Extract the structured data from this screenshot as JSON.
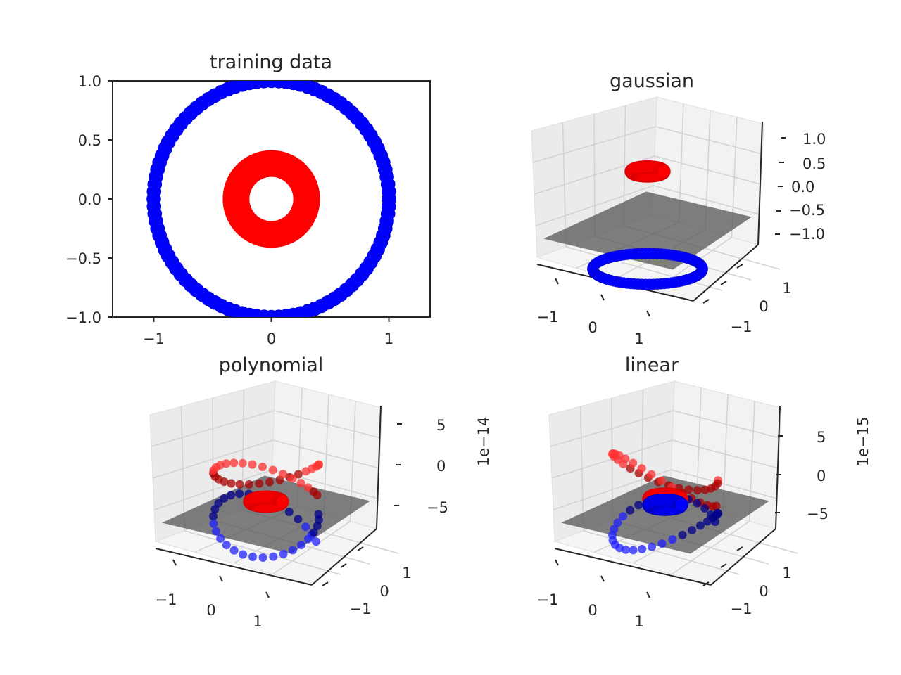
{
  "chart_data": [
    {
      "type": "scatter",
      "title": "training data",
      "xlim": [
        -1.35,
        1.35
      ],
      "ylim": [
        -1.0,
        1.0
      ],
      "xticks": [
        -1,
        0,
        1
      ],
      "xtick_labels": [
        "−1",
        "0",
        "1"
      ],
      "yticks": [
        -1.0,
        -0.5,
        0.0,
        0.5,
        1.0
      ],
      "ytick_labels": [
        "−1.0",
        "−0.5",
        "0.0",
        "0.5",
        "1.0"
      ],
      "grid": false,
      "series": [
        {
          "color": "#0000ff",
          "shape": "circle",
          "radius": 1.0,
          "points": 100
        },
        {
          "color": "#ff0000",
          "shape": "ring",
          "radius": 0.3,
          "points": 100
        }
      ]
    },
    {
      "type": "scatter3d",
      "title": "gaussian",
      "xticks": [
        -1,
        0,
        1
      ],
      "xtick_labels": [
        "−1",
        "0",
        "1"
      ],
      "yticks": [
        -1,
        0,
        1
      ],
      "ytick_labels": [
        "−1",
        "0",
        "1"
      ],
      "zticks": [
        -1.0,
        -0.5,
        0.0,
        0.5,
        1.0
      ],
      "ztick_labels": [
        "−1.0",
        "−0.5",
        "0.0",
        "0.5",
        "1.0"
      ],
      "offset_text": "",
      "plane": {
        "color": "#555555",
        "z": 0.0
      },
      "series": [
        {
          "color": "#ff0000",
          "shape": "ring",
          "radius": 0.3,
          "z": 0.9
        },
        {
          "color": "#0000ff",
          "shape": "ring",
          "radius": 1.0,
          "z": -1.0
        }
      ]
    },
    {
      "type": "scatter3d",
      "title": "polynomial",
      "xticks": [
        -1,
        0,
        1
      ],
      "xtick_labels": [
        "−1",
        "0",
        "1"
      ],
      "yticks": [
        -1,
        0,
        1
      ],
      "ytick_labels": [
        "−1",
        "0",
        "1"
      ],
      "zticks": [
        -5,
        0,
        5
      ],
      "ztick_labels": [
        "−5",
        "0",
        "5"
      ],
      "offset_text": "1e−14",
      "plane": {
        "color": "#555555",
        "z": 0.0
      },
      "series": [
        {
          "color": "#ff0000",
          "shape": "scattered",
          "radius": 1.0,
          "z_amp": 6.0
        },
        {
          "color": "#0000ff",
          "shape": "scattered",
          "radius": 1.0,
          "z_amp": -6.0
        },
        {
          "color": "#ff0000",
          "shape": "ring",
          "radius": 0.3,
          "z": 0.0
        }
      ]
    },
    {
      "type": "scatter3d",
      "title": "linear",
      "xticks": [
        -1,
        0,
        1
      ],
      "xtick_labels": [
        "−1",
        "0",
        "1"
      ],
      "yticks": [
        -1,
        0,
        1
      ],
      "ytick_labels": [
        "−1",
        "0",
        "1"
      ],
      "zticks": [
        -5,
        0,
        5
      ],
      "ztick_labels": [
        "−5",
        "0",
        "5"
      ],
      "offset_text": "1e−15",
      "plane": {
        "color": "#555555",
        "z": 0.0
      },
      "series": [
        {
          "color": "#ff0000",
          "shape": "scattered",
          "radius": 1.0,
          "z_amp": 6.0
        },
        {
          "color": "#0000ff",
          "shape": "scattered",
          "radius": 1.0,
          "z_amp": -6.0
        },
        {
          "color": "#ff0000",
          "shape": "ring",
          "radius": 0.3,
          "z": 0.4
        },
        {
          "color": "#0000ff",
          "shape": "ring",
          "radius": 0.3,
          "z": -0.4
        }
      ]
    }
  ]
}
